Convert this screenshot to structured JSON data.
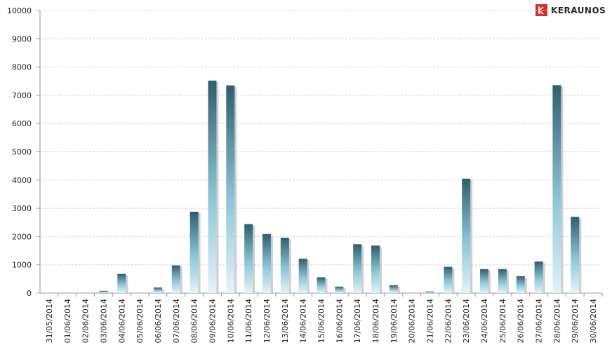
{
  "chart_data": {
    "type": "bar",
    "logo": "KERAUNOS",
    "categories": [
      "31/05/2014",
      "01/06/2014",
      "02/06/2014",
      "03/06/2014",
      "04/06/2014",
      "05/06/2014",
      "06/06/2014",
      "07/06/2014",
      "08/06/2014",
      "09/06/2014",
      "10/06/2014",
      "11/06/2014",
      "12/06/2014",
      "13/06/2014",
      "14/06/2014",
      "15/06/2014",
      "16/06/2014",
      "17/06/2014",
      "18/06/2014",
      "19/06/2014",
      "20/06/2014",
      "21/06/2014",
      "22/06/2014",
      "23/06/2014",
      "24/06/2014",
      "25/06/2014",
      "26/06/2014",
      "27/06/2014",
      "28/06/2014",
      "29/06/2014",
      "30/06/2014"
    ],
    "values": [
      0,
      0,
      0,
      80,
      680,
      0,
      200,
      980,
      2880,
      7520,
      7350,
      2440,
      2090,
      1960,
      1220,
      560,
      230,
      1730,
      1680,
      280,
      0,
      60,
      930,
      4050,
      850,
      850,
      600,
      1120,
      7360,
      2700,
      0
    ],
    "color": "#2e5f6e",
    "ylim": [
      0,
      10000
    ],
    "yticks": [
      0,
      1000,
      2000,
      3000,
      4000,
      5000,
      6000,
      7000,
      8000,
      9000,
      10000
    ],
    "grid": true
  }
}
